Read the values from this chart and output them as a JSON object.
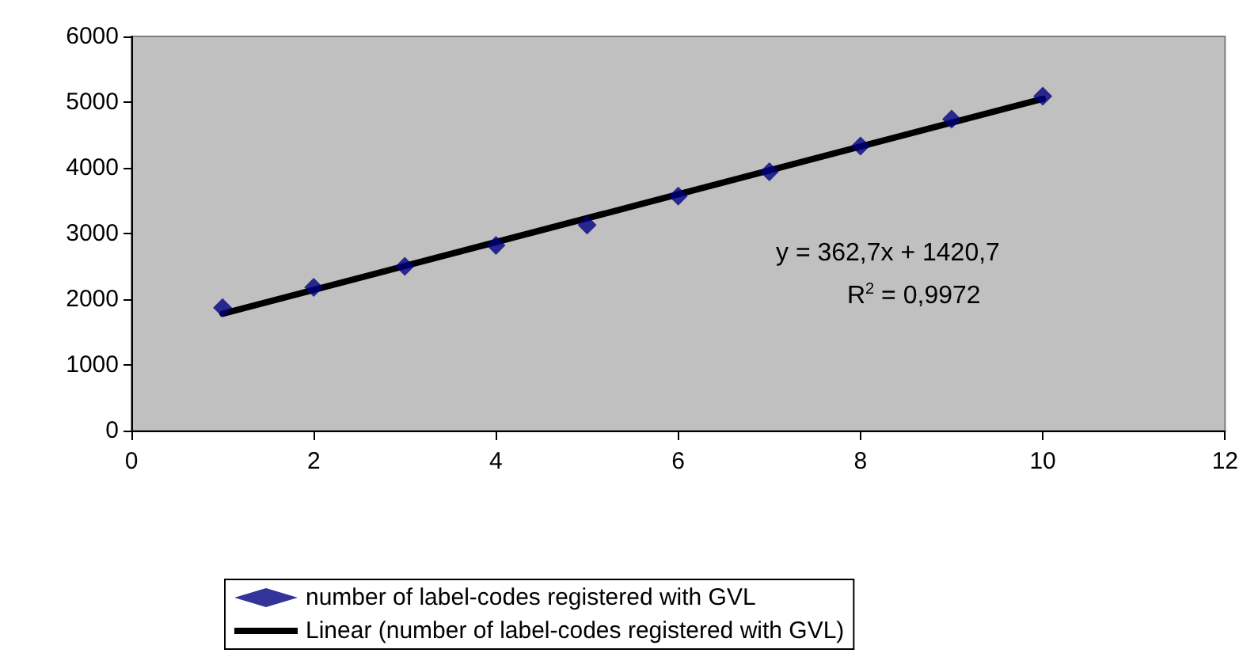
{
  "chart_data": {
    "type": "scatter",
    "x": [
      1,
      2,
      3,
      4,
      5,
      6,
      7,
      8,
      9,
      10
    ],
    "series": [
      {
        "name": "number of label-codes registered with GVL",
        "color": "#000080",
        "values": [
          1870,
          2180,
          2500,
          2820,
          3130,
          3570,
          3940,
          4330,
          4740,
          5090
        ],
        "marker": "diamond"
      },
      {
        "name": "Linear (number of label-codes registered with GVL)",
        "type": "line",
        "color": "#000000",
        "x": [
          1,
          10
        ],
        "values": [
          1780,
          5050
        ],
        "marker": "none"
      }
    ],
    "xlim": [
      0,
      12
    ],
    "xticks": [
      0,
      2,
      4,
      6,
      8,
      10,
      12
    ],
    "ylim": [
      0,
      6000
    ],
    "yticks": [
      0,
      1000,
      2000,
      3000,
      4000,
      5000,
      6000
    ],
    "grid": false,
    "legend": "bottom",
    "annotations": [
      "y = 362,7x + 1420,7",
      "R$^{2}$ = 0,9972"
    ]
  }
}
